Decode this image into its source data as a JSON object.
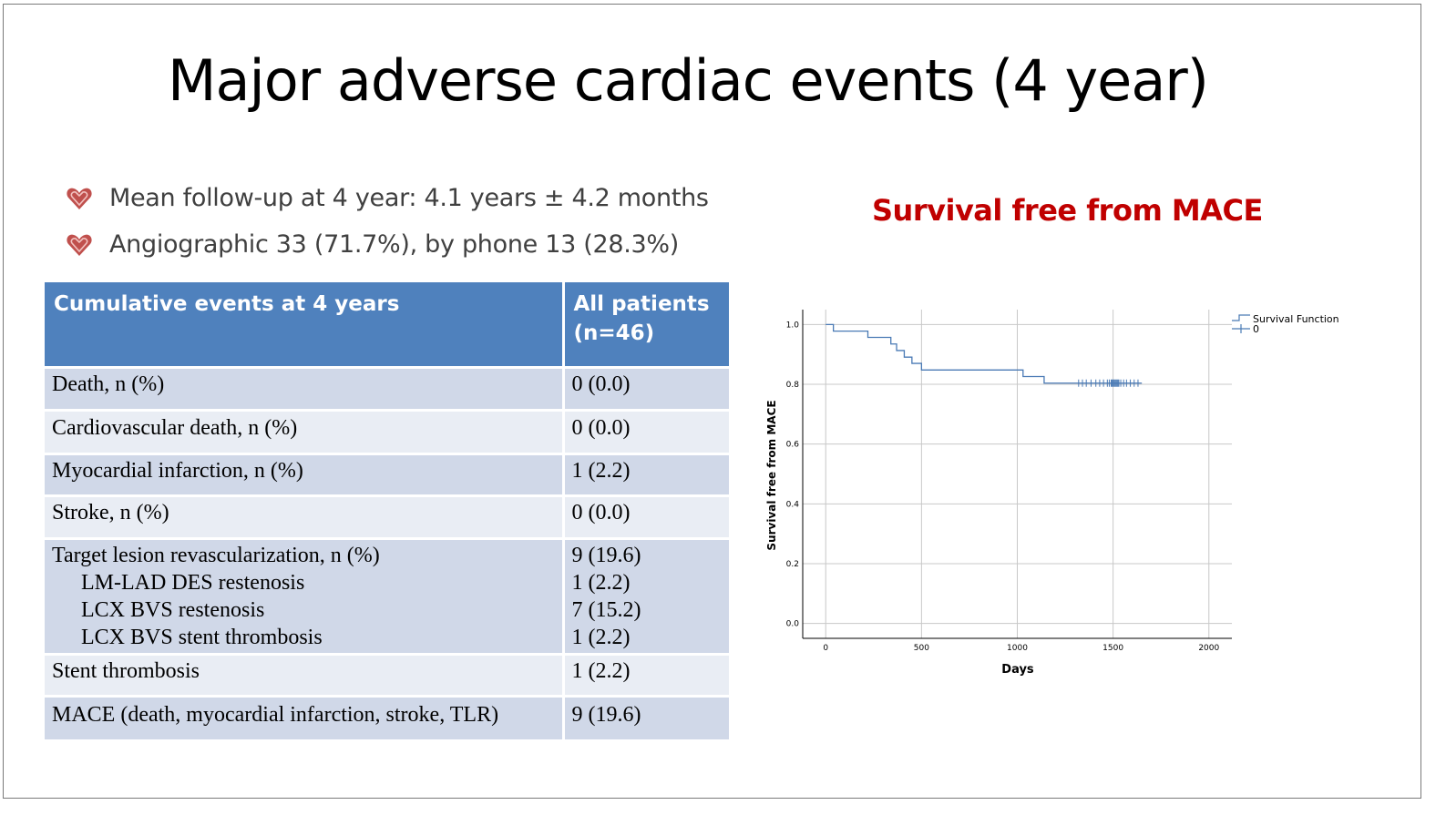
{
  "title": "Major adverse cardiac events (4 year)",
  "bullets": [
    "Mean follow-up at 4 year: 4.1 years ± 4.2 months",
    "Angiographic 33 (71.7%), by phone 13 (28.3%)"
  ],
  "bullet_icon": "heart-icon",
  "table": {
    "headers": [
      "Cumulative events at 4 years",
      "All patients (n=46)"
    ],
    "rows": [
      {
        "label": "Death, n (%)",
        "value": "0 (0.0)"
      },
      {
        "label": "Cardiovascular death, n (%)",
        "value": "0 (0.0)"
      },
      {
        "label": "Myocardial infarction, n (%)",
        "value": "1 (2.2)"
      },
      {
        "label": "Stroke, n (%)",
        "value": "0 (0.0)"
      },
      {
        "label": "Target lesion revascularization, n (%)",
        "value": "9 (19.6)",
        "sub": [
          {
            "label": "LM-LAD DES restenosis",
            "value": "1 (2.2)"
          },
          {
            "label": "LCX BVS restenosis",
            "value": "7 (15.2)"
          },
          {
            "label": "LCX BVS stent thrombosis",
            "value": "1 (2.2)"
          }
        ]
      },
      {
        "label": "Stent thrombosis",
        "value": "1 (2.2)"
      },
      {
        "label": "MACE (death, myocardial infarction, stroke, TLR)",
        "value": "9 (19.6)"
      }
    ]
  },
  "chart_title": "Survival free from MACE",
  "colors": {
    "header": "#4f81bd",
    "row_dark": "#d0d8e8",
    "row_light": "#e9edf4",
    "chart_title": "#c00000",
    "curve": "#4a7ab5"
  },
  "chart_data": {
    "type": "line",
    "step": true,
    "xlabel": "Days",
    "ylabel": "Survival free from MACE",
    "xlim": [
      -120,
      2120
    ],
    "ylim": [
      -0.05,
      1.05
    ],
    "xticks": [
      "0",
      "500",
      "1000",
      "1500",
      "2000"
    ],
    "yticks": [
      "0.0",
      "0.2",
      "0.4",
      "0.6",
      "0.8",
      "1.0"
    ],
    "grid": true,
    "legend": {
      "position": "top-right",
      "entries": [
        "Survival Function",
        "0"
      ]
    },
    "series": [
      {
        "name": "Survival Function",
        "x": [
          0,
          40,
          220,
          340,
          370,
          410,
          450,
          500,
          1030,
          1140,
          1650
        ],
        "y": [
          1.0,
          0.978,
          0.957,
          0.935,
          0.913,
          0.891,
          0.87,
          0.848,
          0.826,
          0.804,
          0.804
        ]
      }
    ],
    "censored": {
      "y": 0.804,
      "x": [
        1320,
        1340,
        1360,
        1385,
        1410,
        1430,
        1450,
        1470,
        1480,
        1490,
        1495,
        1500,
        1505,
        1510,
        1515,
        1520,
        1525,
        1530,
        1540,
        1555,
        1570,
        1590,
        1610,
        1630
      ]
    }
  }
}
